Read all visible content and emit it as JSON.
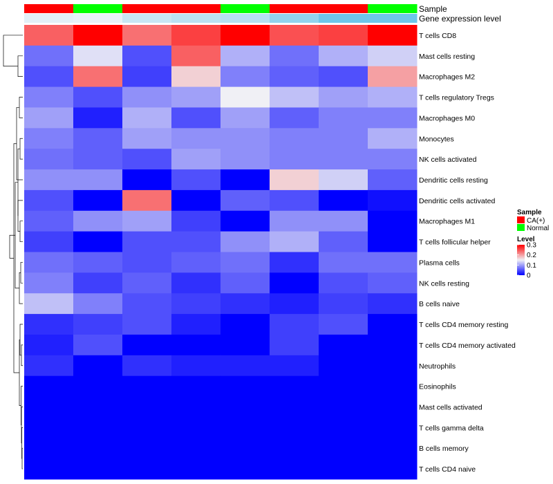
{
  "chart_data": {
    "type": "heatmap",
    "annotations": {
      "sample": {
        "title": "Sample",
        "values": [
          "CA(+)",
          "Normal",
          "CA(+)",
          "CA(+)",
          "Normal",
          "CA(+)",
          "CA(+)",
          "Normal"
        ]
      },
      "gene_expression": {
        "title": "Gene expression level",
        "values": [
          0.04,
          0.03,
          0.1,
          0.13,
          0.14,
          0.22,
          0.3,
          0.3
        ]
      }
    },
    "rows": [
      {
        "label": "T cells CD8",
        "values": [
          0.24,
          0.3,
          0.23,
          0.26,
          0.3,
          0.25,
          0.26,
          0.3
        ]
      },
      {
        "label": "Mast cells resting",
        "values": [
          0.07,
          0.14,
          0.05,
          0.24,
          0.11,
          0.07,
          0.11,
          0.13
        ]
      },
      {
        "label": "Macrophages M2",
        "values": [
          0.05,
          0.23,
          0.04,
          0.17,
          0.08,
          0.06,
          0.05,
          0.2
        ]
      },
      {
        "label": "T cells regulatory  Tregs",
        "values": [
          0.08,
          0.05,
          0.09,
          0.1,
          0.15,
          0.12,
          0.1,
          0.11
        ]
      },
      {
        "label": "Macrophages M0",
        "values": [
          0.1,
          0.02,
          0.11,
          0.05,
          0.1,
          0.06,
          0.08,
          0.08
        ]
      },
      {
        "label": "Monocytes",
        "values": [
          0.08,
          0.06,
          0.1,
          0.09,
          0.09,
          0.08,
          0.08,
          0.11
        ]
      },
      {
        "label": "NK cells activated",
        "values": [
          0.07,
          0.06,
          0.05,
          0.1,
          0.09,
          0.08,
          0.08,
          0.08
        ]
      },
      {
        "label": "Dendritic cells resting",
        "values": [
          0.09,
          0.09,
          0.0,
          0.05,
          0.0,
          0.17,
          0.13,
          0.06
        ]
      },
      {
        "label": "Dendritic cells activated",
        "values": [
          0.05,
          0.0,
          0.23,
          0.0,
          0.06,
          0.05,
          0.0,
          0.01
        ]
      },
      {
        "label": "Macrophages M1",
        "values": [
          0.06,
          0.09,
          0.1,
          0.04,
          0.0,
          0.09,
          0.09,
          0.0
        ]
      },
      {
        "label": "T cells follicular helper",
        "values": [
          0.04,
          0.0,
          0.05,
          0.05,
          0.09,
          0.11,
          0.06,
          0.0
        ]
      },
      {
        "label": "Plasma cells",
        "values": [
          0.07,
          0.06,
          0.05,
          0.06,
          0.07,
          0.03,
          0.07,
          0.07
        ]
      },
      {
        "label": "NK cells resting",
        "values": [
          0.08,
          0.04,
          0.06,
          0.03,
          0.06,
          0.0,
          0.05,
          0.06
        ]
      },
      {
        "label": "B cells naive",
        "values": [
          0.12,
          0.08,
          0.05,
          0.04,
          0.03,
          0.02,
          0.04,
          0.03
        ]
      },
      {
        "label": "T cells CD4 memory resting",
        "values": [
          0.03,
          0.04,
          0.05,
          0.02,
          0.0,
          0.04,
          0.05,
          0.0
        ]
      },
      {
        "label": "T cells CD4 memory activated",
        "values": [
          0.02,
          0.05,
          0.0,
          0.0,
          0.0,
          0.04,
          0.0,
          0.0
        ]
      },
      {
        "label": "Neutrophils",
        "values": [
          0.03,
          0.0,
          0.03,
          0.02,
          0.02,
          0.02,
          0.0,
          0.0
        ]
      },
      {
        "label": "Eosinophils",
        "values": [
          0.0,
          0.0,
          0.0,
          0.0,
          0.0,
          0.0,
          0.0,
          0.0
        ]
      },
      {
        "label": "Mast cells activated",
        "values": [
          0.0,
          0.0,
          0.0,
          0.0,
          0.0,
          0.0,
          0.0,
          0.0
        ]
      },
      {
        "label": "T cells gamma delta",
        "values": [
          0.0,
          0.0,
          0.0,
          0.0,
          0.0,
          0.0,
          0.0,
          0.0
        ]
      },
      {
        "label": "B cells memory",
        "values": [
          0.0,
          0.0,
          0.0,
          0.0,
          0.0,
          0.0,
          0.0,
          0.0
        ]
      },
      {
        "label": "T cells CD4 naive",
        "values": [
          0.0,
          0.0,
          0.0,
          0.0,
          0.0,
          0.0,
          0.0,
          0.0
        ]
      }
    ],
    "dendrogram_rows": "hierarchical clustering tree",
    "color_scale": {
      "title": "Level",
      "range": [
        0,
        0.3
      ],
      "ticks": [
        0.3,
        0.2,
        0.1,
        0
      ],
      "low_color": "#0000ff",
      "mid_color": "#f0f0f5",
      "high_color": "#ff0000",
      "mid_value": 0.15
    },
    "sample_legend": {
      "title": "Sample",
      "items": [
        {
          "label": "CA(+)",
          "color": "#ff0000"
        },
        {
          "label": "Normal",
          "color": "#00ff00"
        }
      ]
    },
    "gene_scale": {
      "low_color": "#e8f2f8",
      "high_color": "#6ec6ea"
    }
  }
}
